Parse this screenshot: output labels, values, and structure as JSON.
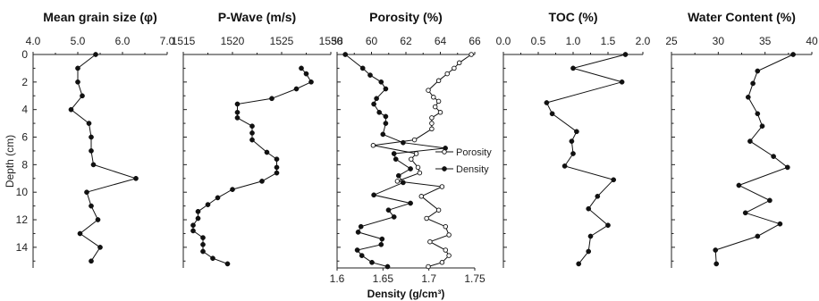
{
  "figure": {
    "y_axis_label": "Depth (cm)",
    "y_ticks": [
      "0",
      "2",
      "4",
      "6",
      "8",
      "10",
      "12",
      "14"
    ],
    "legend": {
      "porosity": "Porosity",
      "density": "Density"
    },
    "colors": {
      "line": "#111111",
      "marker_fill": "#111111",
      "open_marker_fill": "#ffffff"
    }
  },
  "chart_data": [
    {
      "type": "line",
      "title": "Mean grain size (φ)",
      "xlim": [
        4.0,
        7.0
      ],
      "xticks": [
        "4.0",
        "5.0",
        "6.0",
        "7.0"
      ],
      "ylim": [
        0,
        15.5
      ],
      "series": [
        {
          "marker": "filled",
          "points": [
            [
              5.4,
              0
            ],
            [
              5.0,
              1
            ],
            [
              5.0,
              2
            ],
            [
              5.1,
              3
            ],
            [
              4.85,
              4
            ],
            [
              5.25,
              5
            ],
            [
              5.3,
              6
            ],
            [
              5.3,
              7
            ],
            [
              5.35,
              8
            ],
            [
              6.3,
              9
            ],
            [
              5.2,
              10
            ],
            [
              5.3,
              11
            ],
            [
              5.45,
              12
            ],
            [
              5.05,
              13
            ],
            [
              5.5,
              14
            ],
            [
              5.3,
              15
            ]
          ]
        }
      ]
    },
    {
      "type": "line",
      "title": "P-Wave (m/s)",
      "xlim": [
        1515,
        1530
      ],
      "xticks": [
        "1515",
        "1520",
        "1525",
        "1530"
      ],
      "ylim": [
        0,
        15.5
      ],
      "series": [
        {
          "marker": "filled",
          "points": [
            [
              1527,
              1
            ],
            [
              1527.5,
              1.4
            ],
            [
              1528,
              2
            ],
            [
              1526.5,
              2.5
            ],
            [
              1524,
              3.2
            ],
            [
              1520.5,
              3.6
            ],
            [
              1520.5,
              4.2
            ],
            [
              1520.5,
              4.6
            ],
            [
              1522,
              5.2
            ],
            [
              1522,
              5.7
            ],
            [
              1522,
              6.2
            ],
            [
              1523.5,
              7.1
            ],
            [
              1524.5,
              7.6
            ],
            [
              1524.5,
              8.2
            ],
            [
              1524.5,
              8.6
            ],
            [
              1523,
              9.2
            ],
            [
              1520,
              9.8
            ],
            [
              1518.5,
              10.4
            ],
            [
              1517.5,
              10.9
            ],
            [
              1516.5,
              11.4
            ],
            [
              1516.5,
              11.9
            ],
            [
              1516,
              12.4
            ],
            [
              1516,
              12.8
            ],
            [
              1517,
              13.3
            ],
            [
              1517,
              13.8
            ],
            [
              1517,
              14.3
            ],
            [
              1518,
              14.8
            ],
            [
              1519.5,
              15.2
            ]
          ]
        }
      ]
    },
    {
      "type": "line",
      "title": "Porosity (%)",
      "xlim": [
        58,
        66
      ],
      "xticks": [
        "58",
        "60",
        "62",
        "64",
        "66"
      ],
      "x2label": "Density (g/cm³)",
      "x2lim": [
        1.6,
        1.75
      ],
      "x2ticks": [
        "1.6",
        "1.65",
        "1.7",
        "1.75"
      ],
      "ylim": [
        0,
        15.5
      ],
      "series": [
        {
          "name": "Porosity",
          "marker": "open",
          "points": [
            [
              65.8,
              0
            ],
            [
              65.1,
              0.6
            ],
            [
              64.8,
              1
            ],
            [
              64.4,
              1.4
            ],
            [
              63.9,
              1.9
            ],
            [
              63.3,
              2.6
            ],
            [
              63.6,
              3.1
            ],
            [
              63.9,
              3.4
            ],
            [
              63.7,
              3.8
            ],
            [
              64.0,
              4.2
            ],
            [
              63.5,
              4.6
            ],
            [
              63.5,
              5
            ],
            [
              63.5,
              5.4
            ],
            [
              62.5,
              6.2
            ],
            [
              60.1,
              6.6
            ],
            [
              62.6,
              7.2
            ],
            [
              62.3,
              7.6
            ],
            [
              62.7,
              8.2
            ],
            [
              62.8,
              8.6
            ],
            [
              61.5,
              9.2
            ],
            [
              64.1,
              9.6
            ],
            [
              62.9,
              10.3
            ],
            [
              63.9,
              11.3
            ],
            [
              63.2,
              11.9
            ],
            [
              64.3,
              12.5
            ],
            [
              64.5,
              13.1
            ],
            [
              63.4,
              13.6
            ],
            [
              64.3,
              14.2
            ],
            [
              64.5,
              14.6
            ],
            [
              64.1,
              15.1
            ],
            [
              63.3,
              15.4
            ]
          ]
        },
        {
          "name": "Density",
          "marker": "filled",
          "points": [
            [
              1.609,
              0
            ],
            [
              1.628,
              1
            ],
            [
              1.636,
              1.5
            ],
            [
              1.648,
              2
            ],
            [
              1.653,
              2.5
            ],
            [
              1.643,
              3.2
            ],
            [
              1.64,
              3.6
            ],
            [
              1.646,
              4.2
            ],
            [
              1.653,
              4.5
            ],
            [
              1.653,
              5
            ],
            [
              1.65,
              5.8
            ],
            [
              1.672,
              6.4
            ],
            [
              1.718,
              6.8
            ],
            [
              1.662,
              7.2
            ],
            [
              1.664,
              7.6
            ],
            [
              1.68,
              8.3
            ],
            [
              1.667,
              8.8
            ],
            [
              1.672,
              9.3
            ],
            [
              1.64,
              10.2
            ],
            [
              1.68,
              10.8
            ],
            [
              1.656,
              11.3
            ],
            [
              1.662,
              11.8
            ],
            [
              1.626,
              12.5
            ],
            [
              1.623,
              12.9
            ],
            [
              1.649,
              13.4
            ],
            [
              1.648,
              13.8
            ],
            [
              1.622,
              14.2
            ],
            [
              1.627,
              14.6
            ],
            [
              1.638,
              15.1
            ],
            [
              1.655,
              15.4
            ]
          ]
        }
      ]
    },
    {
      "type": "line",
      "title": "TOC (%)",
      "xlim": [
        0.0,
        2.0
      ],
      "xticks": [
        "0.0",
        "0.5",
        "1.0",
        "1.5",
        "2.0"
      ],
      "ylim": [
        0,
        15.5
      ],
      "series": [
        {
          "marker": "filled",
          "points": [
            [
              1.75,
              0
            ],
            [
              1.0,
              1
            ],
            [
              1.7,
              2
            ],
            [
              0.62,
              3.5
            ],
            [
              0.7,
              4.3
            ],
            [
              1.05,
              5.6
            ],
            [
              0.98,
              6.3
            ],
            [
              1.0,
              7.2
            ],
            [
              0.88,
              8.1
            ],
            [
              1.58,
              9.1
            ],
            [
              1.35,
              10.3
            ],
            [
              1.22,
              11.2
            ],
            [
              1.5,
              12.4
            ],
            [
              1.25,
              13.2
            ],
            [
              1.22,
              14.3
            ],
            [
              1.08,
              15.2
            ]
          ]
        }
      ]
    },
    {
      "type": "line",
      "title": "Water Content (%)",
      "xlim": [
        25,
        40
      ],
      "xticks": [
        "25",
        "30",
        "35",
        "40"
      ],
      "ylim": [
        0,
        15.5
      ],
      "series": [
        {
          "marker": "filled",
          "points": [
            [
              38,
              0
            ],
            [
              34.2,
              1.2
            ],
            [
              33.7,
              2.1
            ],
            [
              33.2,
              3.1
            ],
            [
              34.2,
              4.3
            ],
            [
              34.7,
              5.2
            ],
            [
              33.4,
              6.3
            ],
            [
              35.9,
              7.4
            ],
            [
              37.4,
              8.2
            ],
            [
              32.2,
              9.5
            ],
            [
              35.5,
              10.6
            ],
            [
              32.9,
              11.5
            ],
            [
              36.6,
              12.3
            ],
            [
              34.2,
              13.2
            ],
            [
              29.7,
              14.2
            ],
            [
              29.8,
              15.2
            ]
          ]
        }
      ]
    }
  ]
}
